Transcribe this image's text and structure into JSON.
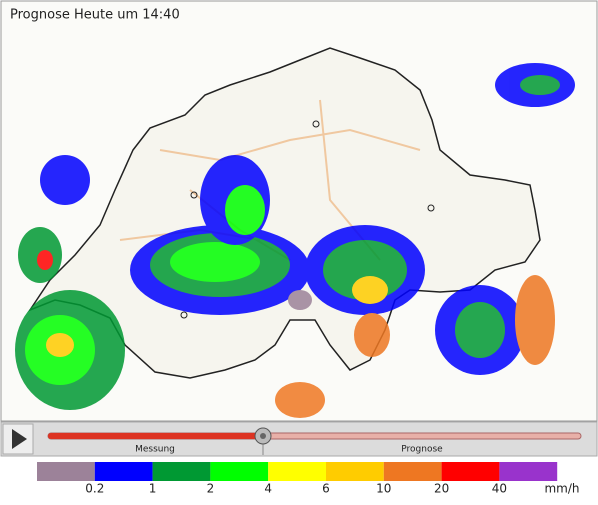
{
  "header": {
    "title": "Prognose Heute um 14:40"
  },
  "player": {
    "past_label": "Messung",
    "future_label": "Prognose"
  },
  "legend": {
    "colors": [
      "#9c8299",
      "#0000ff",
      "#009933",
      "#00ff00",
      "#ffff00",
      "#ffcc00",
      "#ee7722",
      "#ff0000",
      "#9933cc"
    ],
    "labels": [
      "0.2",
      "1",
      "2",
      "4",
      "6",
      "10",
      "20",
      "40"
    ],
    "unit": "mm/h"
  }
}
